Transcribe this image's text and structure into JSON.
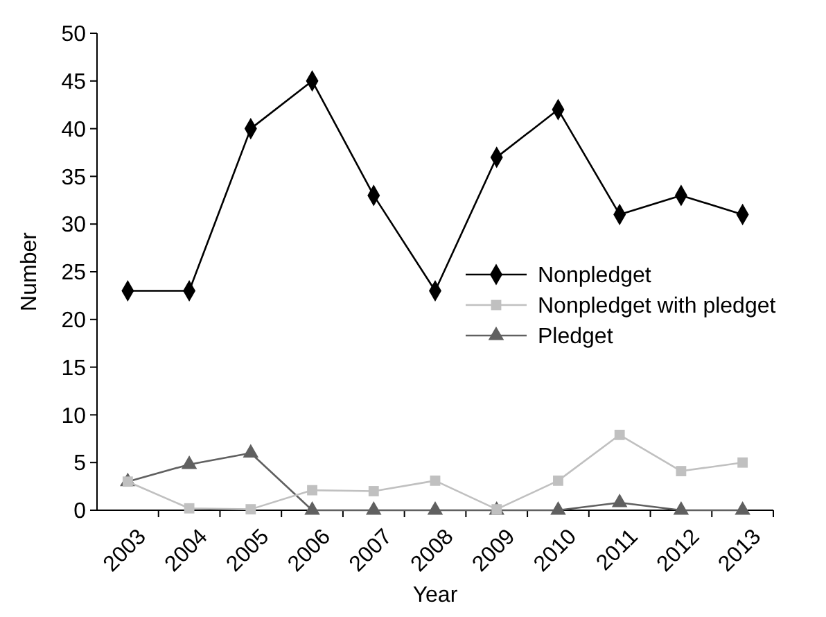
{
  "chart_data": {
    "type": "line",
    "xlabel": "Year",
    "ylabel": "Number",
    "categories": [
      "2003",
      "2004",
      "2005",
      "2006",
      "2007",
      "2008",
      "2009",
      "2010",
      "2011",
      "2012",
      "2013"
    ],
    "series": [
      {
        "name": "Nonpledget",
        "color": "#000000",
        "marker": "diamond",
        "values": [
          23,
          23,
          40,
          45,
          33,
          23,
          37,
          42,
          31,
          33,
          31
        ]
      },
      {
        "name": "Nonpledget with pledget",
        "color": "#c0c0c0",
        "marker": "square",
        "values": [
          3,
          0.2,
          0.1,
          2.1,
          2,
          3.1,
          0.1,
          3.1,
          7.9,
          4.1,
          5
        ]
      },
      {
        "name": "Pledget",
        "color": "#606060",
        "marker": "triangle",
        "values": [
          3,
          4.8,
          6,
          0,
          0,
          0,
          0,
          0,
          0.8,
          0,
          0
        ]
      }
    ],
    "ylim": [
      0,
      50
    ],
    "yticks": [
      0,
      5,
      10,
      15,
      20,
      25,
      30,
      35,
      40,
      45,
      50
    ],
    "grid": false,
    "legend": "right",
    "line_style": "solid"
  }
}
